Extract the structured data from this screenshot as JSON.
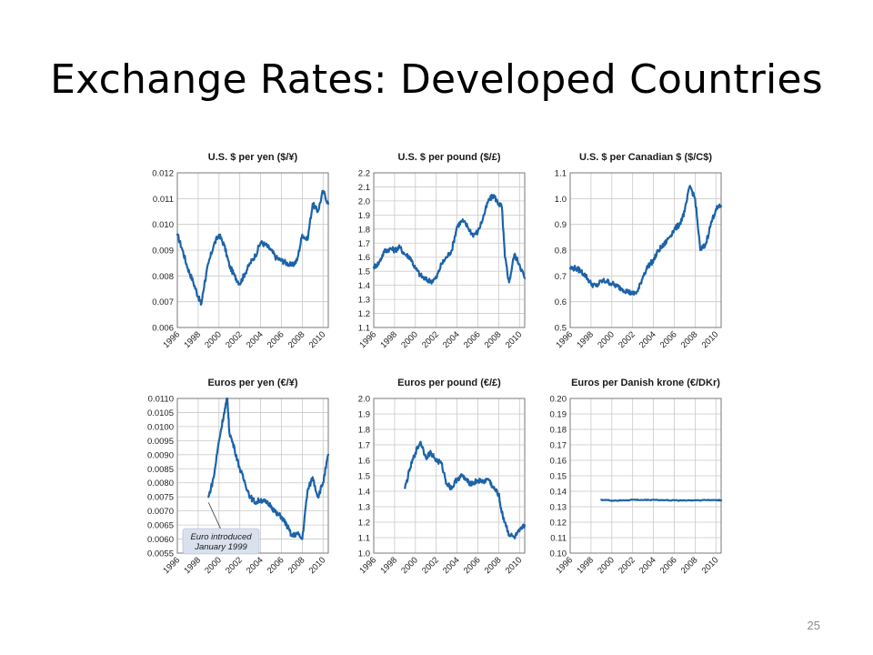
{
  "slide": {
    "title": "Exchange Rates: Developed Countries",
    "number": "25"
  },
  "annotation": {
    "line1": "Euro introduced",
    "line2": "January 1999"
  },
  "colors": {
    "line": "#1c63a8",
    "grid": "#c9c9c9",
    "box": "#d9e1ee"
  },
  "chart_data": [
    {
      "type": "line",
      "title": "U.S. $ per yen ($/¥)",
      "x_ticks": [
        "1996",
        "1998",
        "2000",
        "2002",
        "2004",
        "2006",
        "2008",
        "2010"
      ],
      "y_ticks": [
        "0.006",
        "0.007",
        "0.008",
        "0.009",
        "0.010",
        "0.011",
        "0.012"
      ],
      "ylim": [
        0.006,
        0.012
      ],
      "xlim": [
        1996,
        2010.5
      ],
      "grid": true,
      "x": [
        1996,
        1996.5,
        1997,
        1997.5,
        1998,
        1998.3,
        1998.6,
        1999,
        1999.5,
        2000,
        2000.5,
        2001,
        2001.5,
        2002,
        2002.5,
        2003,
        2003.5,
        2004,
        2004.5,
        2005,
        2005.5,
        2006,
        2006.5,
        2007,
        2007.5,
        2008,
        2008.5,
        2009,
        2009.5,
        2010,
        2010.5
      ],
      "values": [
        0.0096,
        0.009,
        0.0083,
        0.0078,
        0.0072,
        0.0069,
        0.0077,
        0.0085,
        0.0092,
        0.0096,
        0.0092,
        0.0084,
        0.008,
        0.0077,
        0.0081,
        0.0085,
        0.0088,
        0.0093,
        0.0092,
        0.009,
        0.0087,
        0.0086,
        0.0085,
        0.0084,
        0.0086,
        0.0096,
        0.0094,
        0.0108,
        0.0105,
        0.0113,
        0.0108
      ]
    },
    {
      "type": "line",
      "title": "U.S. $ per pound ($/£)",
      "x_ticks": [
        "1996",
        "1998",
        "2000",
        "2002",
        "2004",
        "2006",
        "2008",
        "2010"
      ],
      "y_ticks": [
        "1.1",
        "1.2",
        "1.3",
        "1.4",
        "1.5",
        "1.6",
        "1.7",
        "1.8",
        "1.9",
        "2.0",
        "2.1",
        "2.2"
      ],
      "ylim": [
        1.1,
        2.2
      ],
      "xlim": [
        1996,
        2010.5
      ],
      "grid": true,
      "x": [
        1996,
        1996.5,
        1997,
        1997.5,
        1998,
        1998.5,
        1999,
        1999.5,
        2000,
        2000.5,
        2001,
        2001.5,
        2002,
        2002.5,
        2003,
        2003.5,
        2004,
        2004.5,
        2005,
        2005.5,
        2006,
        2006.5,
        2007,
        2007.5,
        2008,
        2008.3,
        2008.6,
        2009,
        2009.5,
        2010,
        2010.5
      ],
      "values": [
        1.53,
        1.56,
        1.64,
        1.66,
        1.65,
        1.67,
        1.62,
        1.6,
        1.52,
        1.47,
        1.44,
        1.43,
        1.45,
        1.55,
        1.6,
        1.65,
        1.82,
        1.86,
        1.82,
        1.76,
        1.78,
        1.88,
        2.0,
        2.04,
        1.98,
        1.96,
        1.6,
        1.42,
        1.62,
        1.55,
        1.45
      ]
    },
    {
      "type": "line",
      "title": "U.S. $ per Canadian $ ($/C$)",
      "x_ticks": [
        "1996",
        "1998",
        "2000",
        "2002",
        "2004",
        "2006",
        "2008",
        "2010"
      ],
      "y_ticks": [
        "0.5",
        "0.6",
        "0.7",
        "0.8",
        "0.9",
        "1.0",
        "1.1"
      ],
      "ylim": [
        0.5,
        1.1
      ],
      "xlim": [
        1996,
        2010.5
      ],
      "grid": true,
      "x": [
        1996,
        1996.5,
        1997,
        1997.5,
        1998,
        1998.5,
        1999,
        1999.5,
        2000,
        2000.5,
        2001,
        2001.5,
        2002,
        2002.5,
        2003,
        2003.5,
        2004,
        2004.5,
        2005,
        2005.5,
        2006,
        2006.5,
        2007,
        2007.5,
        2008,
        2008.5,
        2009,
        2009.5,
        2010,
        2010.5
      ],
      "values": [
        0.73,
        0.73,
        0.72,
        0.7,
        0.67,
        0.66,
        0.68,
        0.68,
        0.67,
        0.66,
        0.65,
        0.64,
        0.63,
        0.64,
        0.7,
        0.74,
        0.76,
        0.8,
        0.82,
        0.85,
        0.88,
        0.9,
        0.95,
        1.05,
        1.0,
        0.8,
        0.82,
        0.9,
        0.96,
        0.97
      ]
    },
    {
      "type": "line",
      "title": "Euros per yen (€/¥)",
      "x_ticks": [
        "1996",
        "1998",
        "2000",
        "2002",
        "2004",
        "2006",
        "2008",
        "2010"
      ],
      "y_ticks": [
        "0.0055",
        "0.0060",
        "0.0065",
        "0.0070",
        "0.0075",
        "0.0080",
        "0.0085",
        "0.0090",
        "0.0095",
        "0.0100",
        "0.0105",
        "0.0110"
      ],
      "ylim": [
        0.0055,
        0.011
      ],
      "xlim": [
        1996,
        2010.5
      ],
      "grid": true,
      "x": [
        1999,
        1999.5,
        2000,
        2000.5,
        2000.8,
        2001,
        2001.5,
        2002,
        2002.5,
        2003,
        2003.5,
        2004,
        2004.5,
        2005,
        2005.5,
        2006,
        2006.5,
        2007,
        2007.5,
        2008,
        2008.5,
        2009,
        2009.5,
        2010,
        2010.5
      ],
      "values": [
        0.0075,
        0.0082,
        0.0095,
        0.0105,
        0.011,
        0.0098,
        0.0092,
        0.0085,
        0.008,
        0.0075,
        0.0073,
        0.0074,
        0.0073,
        0.0072,
        0.0069,
        0.0068,
        0.0065,
        0.0061,
        0.0062,
        0.006,
        0.0077,
        0.0082,
        0.0075,
        0.008,
        0.009
      ]
    },
    {
      "type": "line",
      "title": "Euros per pound (€/£)",
      "x_ticks": [
        "1996",
        "1998",
        "2000",
        "2002",
        "2004",
        "2006",
        "2008",
        "2010"
      ],
      "y_ticks": [
        "1.0",
        "1.1",
        "1.2",
        "1.3",
        "1.4",
        "1.5",
        "1.6",
        "1.7",
        "1.8",
        "1.9",
        "2.0"
      ],
      "ylim": [
        1.0,
        2.0
      ],
      "xlim": [
        1996,
        2010.5
      ],
      "grid": true,
      "x": [
        1999,
        1999.5,
        2000,
        2000.5,
        2001,
        2001.5,
        2002,
        2002.5,
        2003,
        2003.5,
        2004,
        2004.5,
        2005,
        2005.5,
        2006,
        2006.5,
        2007,
        2007.5,
        2008,
        2008.3,
        2008.6,
        2009,
        2009.5,
        2010,
        2010.5
      ],
      "values": [
        1.42,
        1.55,
        1.65,
        1.72,
        1.62,
        1.65,
        1.6,
        1.58,
        1.45,
        1.42,
        1.48,
        1.5,
        1.46,
        1.45,
        1.47,
        1.46,
        1.48,
        1.42,
        1.38,
        1.26,
        1.2,
        1.12,
        1.1,
        1.14,
        1.18
      ]
    },
    {
      "type": "line",
      "title": "Euros per Danish krone (€/DKr)",
      "x_ticks": [
        "1996",
        "1998",
        "2000",
        "2002",
        "2004",
        "2006",
        "2008",
        "2010"
      ],
      "y_ticks": [
        "0.10",
        "0.11",
        "0.12",
        "0.13",
        "0.14",
        "0.15",
        "0.16",
        "0.17",
        "0.18",
        "0.19",
        "0.20"
      ],
      "ylim": [
        0.1,
        0.2
      ],
      "xlim": [
        1996,
        2010.5
      ],
      "grid": true,
      "x": [
        1999,
        2000,
        2001,
        2002,
        2003,
        2004,
        2005,
        2006,
        2007,
        2008,
        2009,
        2010,
        2010.5
      ],
      "values": [
        0.1345,
        0.134,
        0.134,
        0.1345,
        0.1343,
        0.1345,
        0.1342,
        0.1341,
        0.1341,
        0.1342,
        0.1343,
        0.1343,
        0.1342
      ]
    }
  ]
}
